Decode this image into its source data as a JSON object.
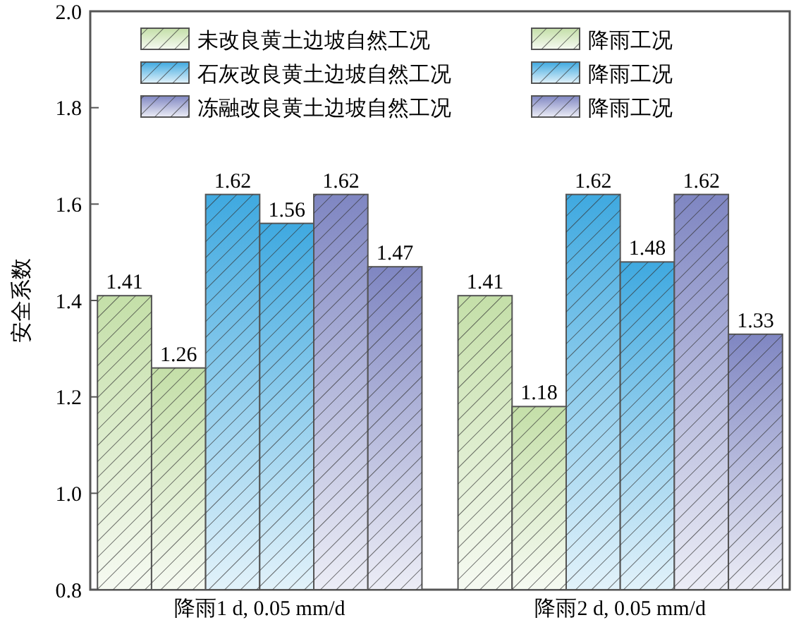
{
  "chart_data": {
    "type": "bar",
    "ylabel": "安全系数",
    "categories": [
      "降雨1 d, 0.05 mm/d",
      "降雨2 d, 0.05 mm/d"
    ],
    "series": [
      {
        "name": "未改良黄土边坡自然工况",
        "color": "#c4dfa8",
        "values": [
          1.41,
          1.41
        ]
      },
      {
        "name": "降雨工况",
        "color": "#c4dfa8",
        "values": [
          1.26,
          1.18
        ]
      },
      {
        "name": "石灰改良黄土边坡自然工况",
        "color": "#3fa9e0",
        "values": [
          1.62,
          1.62
        ]
      },
      {
        "name": "降雨工况",
        "color": "#3fa9e0",
        "values": [
          1.56,
          1.48
        ]
      },
      {
        "name": "冻融改良黄土边坡自然工况",
        "color": "#7f86c2",
        "values": [
          1.62,
          1.62
        ]
      },
      {
        "name": "降雨工况",
        "color": "#7f86c2",
        "values": [
          1.47,
          1.33
        ]
      }
    ],
    "ylim": [
      0.8,
      2.0
    ],
    "yticks": [
      {
        "value": 0.8,
        "label": "0.8"
      },
      {
        "value": 1.0,
        "label": "1.0"
      },
      {
        "value": 1.2,
        "label": "1.2"
      },
      {
        "value": 1.4,
        "label": "1.4"
      },
      {
        "value": 1.6,
        "label": "1.6"
      },
      {
        "value": 1.8,
        "label": "1.8"
      },
      {
        "value": 2.0,
        "label": "2.0"
      }
    ],
    "data_labels": true,
    "legend": "top",
    "grid": false
  }
}
